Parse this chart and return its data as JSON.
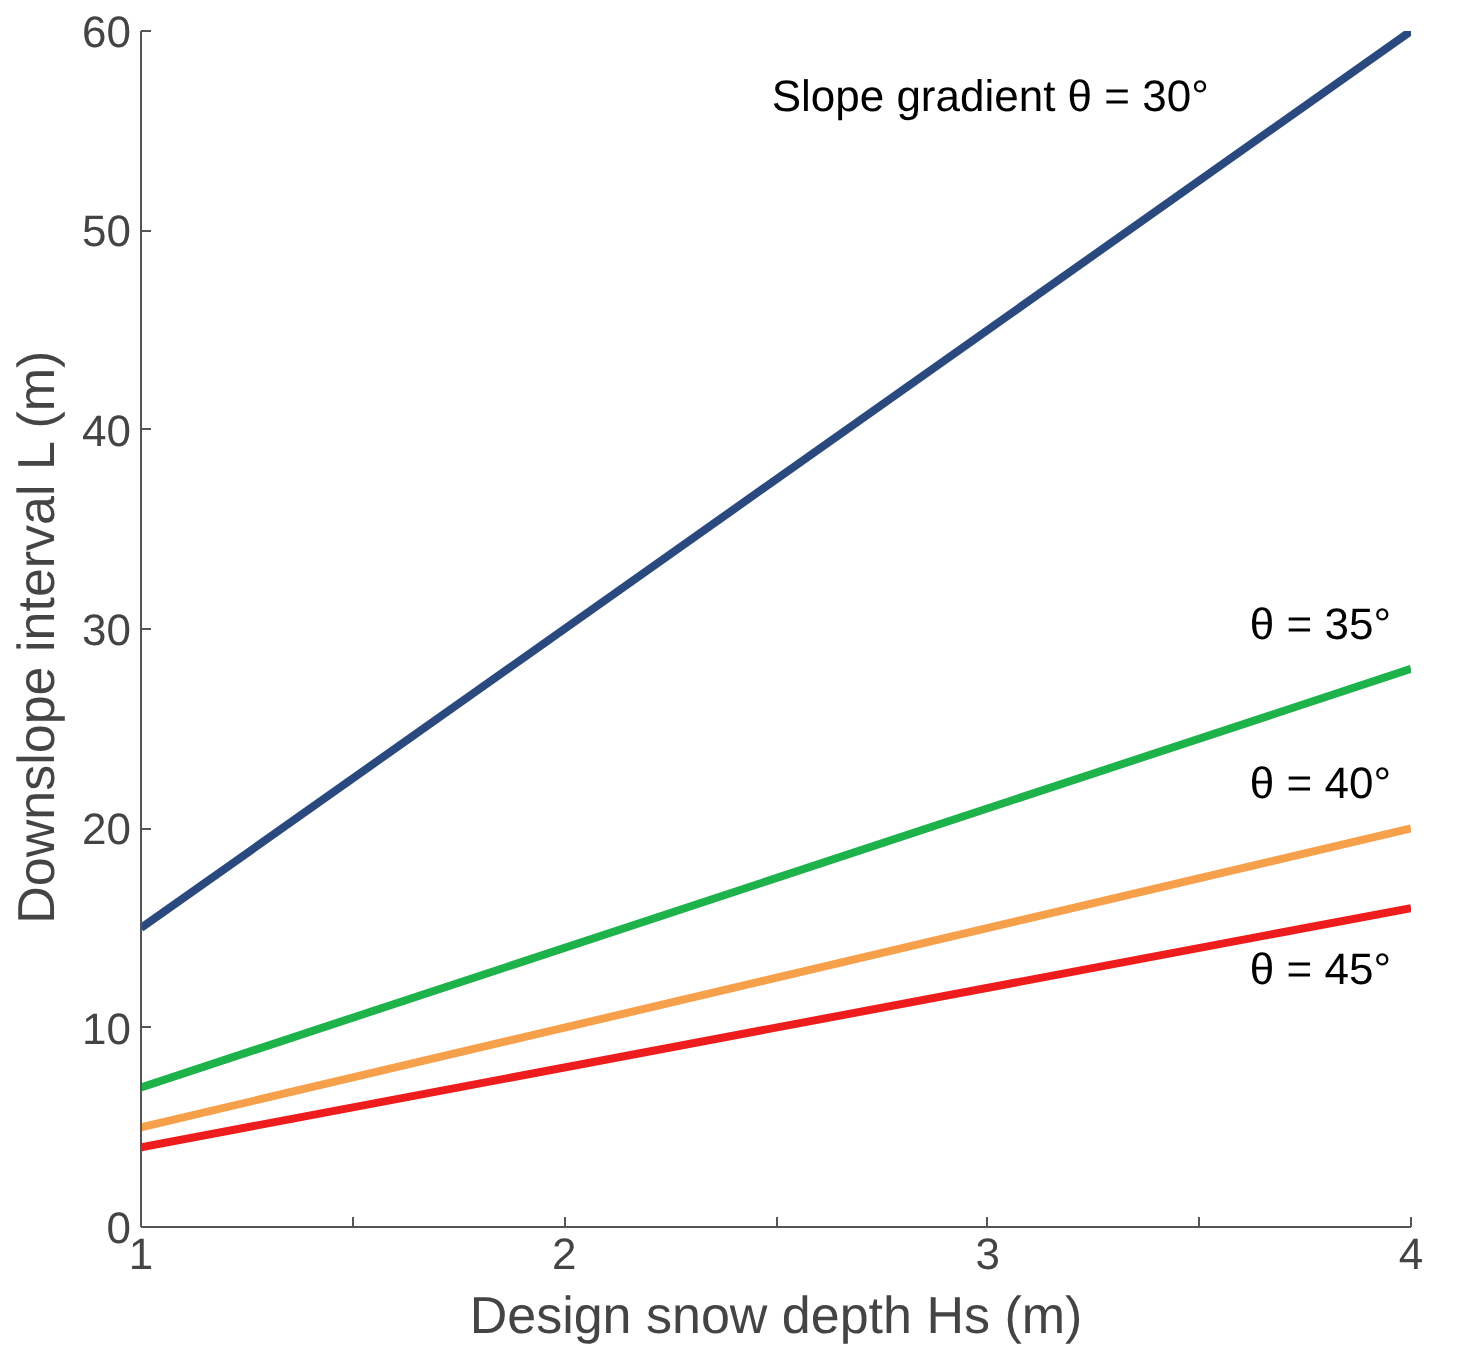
{
  "chart_data": {
    "type": "line",
    "xlabel": "Design snow depth Hs (m)",
    "ylabel": "Downslope interval  L (m)",
    "x": [
      1,
      4
    ],
    "series": [
      {
        "name": "Slope gradient  θ = 30°",
        "color": "#2a4a7f",
        "values": [
          15,
          60
        ]
      },
      {
        "name": "θ = 35°",
        "color": "#1db34a",
        "values": [
          7,
          28
        ]
      },
      {
        "name": "θ = 40°",
        "color": "#f7a04c",
        "values": [
          5,
          20
        ]
      },
      {
        "name": "θ = 45°",
        "color": "#ee1c1c",
        "values": [
          4,
          16
        ]
      }
    ],
    "xlim": [
      1,
      4
    ],
    "ylim": [
      0,
      60
    ],
    "xticks": [
      1,
      {
        "value": 1.5,
        "label": null
      },
      2,
      {
        "value": 2.5,
        "label": null
      },
      3,
      {
        "value": 3.5,
        "label": null
      },
      4
    ],
    "yticks": [
      0,
      10,
      20,
      30,
      40,
      50,
      60
    ],
    "grid": false,
    "marker": "none",
    "line_style": "solid"
  }
}
